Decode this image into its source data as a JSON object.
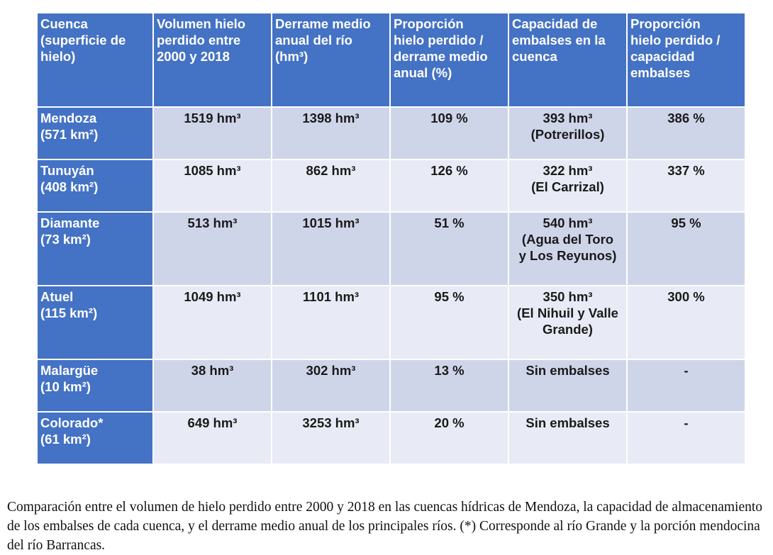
{
  "table": {
    "headers": [
      [
        "Cuenca",
        "(superficie de",
        "hielo)"
      ],
      [
        "Volumen hielo",
        "perdido entre",
        "2000 y 2018"
      ],
      [
        "Derrame medio",
        "anual del río",
        "(hm³)"
      ],
      [
        "Proporción",
        "hielo perdido /",
        "derrame medio",
        "anual (%)"
      ],
      [
        "Capacidad de",
        "embalses en la",
        "cuenca"
      ],
      [
        "Proporción",
        "hielo perdido /",
        "capacidad",
        "embalses"
      ]
    ],
    "rows": [
      {
        "name": "Mendoza",
        "area": "(571 km²)",
        "ice_lost": "1519 hm³",
        "runoff": "1398 hm³",
        "ratio_runoff": "109 %",
        "capacity": [
          "393 hm³",
          "(Potrerillos)"
        ],
        "ratio_capacity": "386 %"
      },
      {
        "name": "Tunuyán",
        "area": "(408 km²)",
        "ice_lost": "1085 hm³",
        "runoff": "862 hm³",
        "ratio_runoff": "126 %",
        "capacity": [
          "322  hm³",
          "(El Carrizal)"
        ],
        "ratio_capacity": "337 %"
      },
      {
        "name": "Diamante",
        "area": "(73 km²)",
        "ice_lost": "513 hm³",
        "runoff": "1015 hm³",
        "ratio_runoff": "51 %",
        "capacity": [
          "540 hm³",
          "(Agua del Toro",
          "y Los Reyunos)"
        ],
        "ratio_capacity": "95 %"
      },
      {
        "name": "Atuel",
        "area": "(115 km²)",
        "ice_lost": "1049 hm³",
        "runoff": "1101 hm³",
        "ratio_runoff": "95 %",
        "capacity": [
          "350 hm³",
          "(El Nihuil y Valle",
          "Grande)"
        ],
        "ratio_capacity": "300 %"
      },
      {
        "name": "Malargüe",
        "area": "(10 km²)",
        "ice_lost": "38 hm³",
        "runoff": "302 hm³",
        "ratio_runoff": "13 %",
        "capacity": [
          "Sin embalses"
        ],
        "ratio_capacity": "-"
      },
      {
        "name": "Colorado*",
        "area": "(61 km²)",
        "ice_lost": "649 hm³",
        "runoff": "3253 hm³",
        "ratio_runoff": "20 %",
        "capacity": [
          "Sin embalses"
        ],
        "ratio_capacity": "-"
      }
    ]
  },
  "caption": "Comparación entre el volumen de hielo perdido entre 2000 y 2018 en las cuencas hídricas de Mendoza, la capacidad de almacenamiento de los embalses de cada cuenca, y el derrame medio anual de los principales ríos. (*) Corresponde al río Grande y la porción mendocina del río Barrancas.",
  "colors": {
    "header_bg": "#4472c4",
    "band_dark": "#cfd5e9",
    "band_light": "#e8ebf5"
  }
}
